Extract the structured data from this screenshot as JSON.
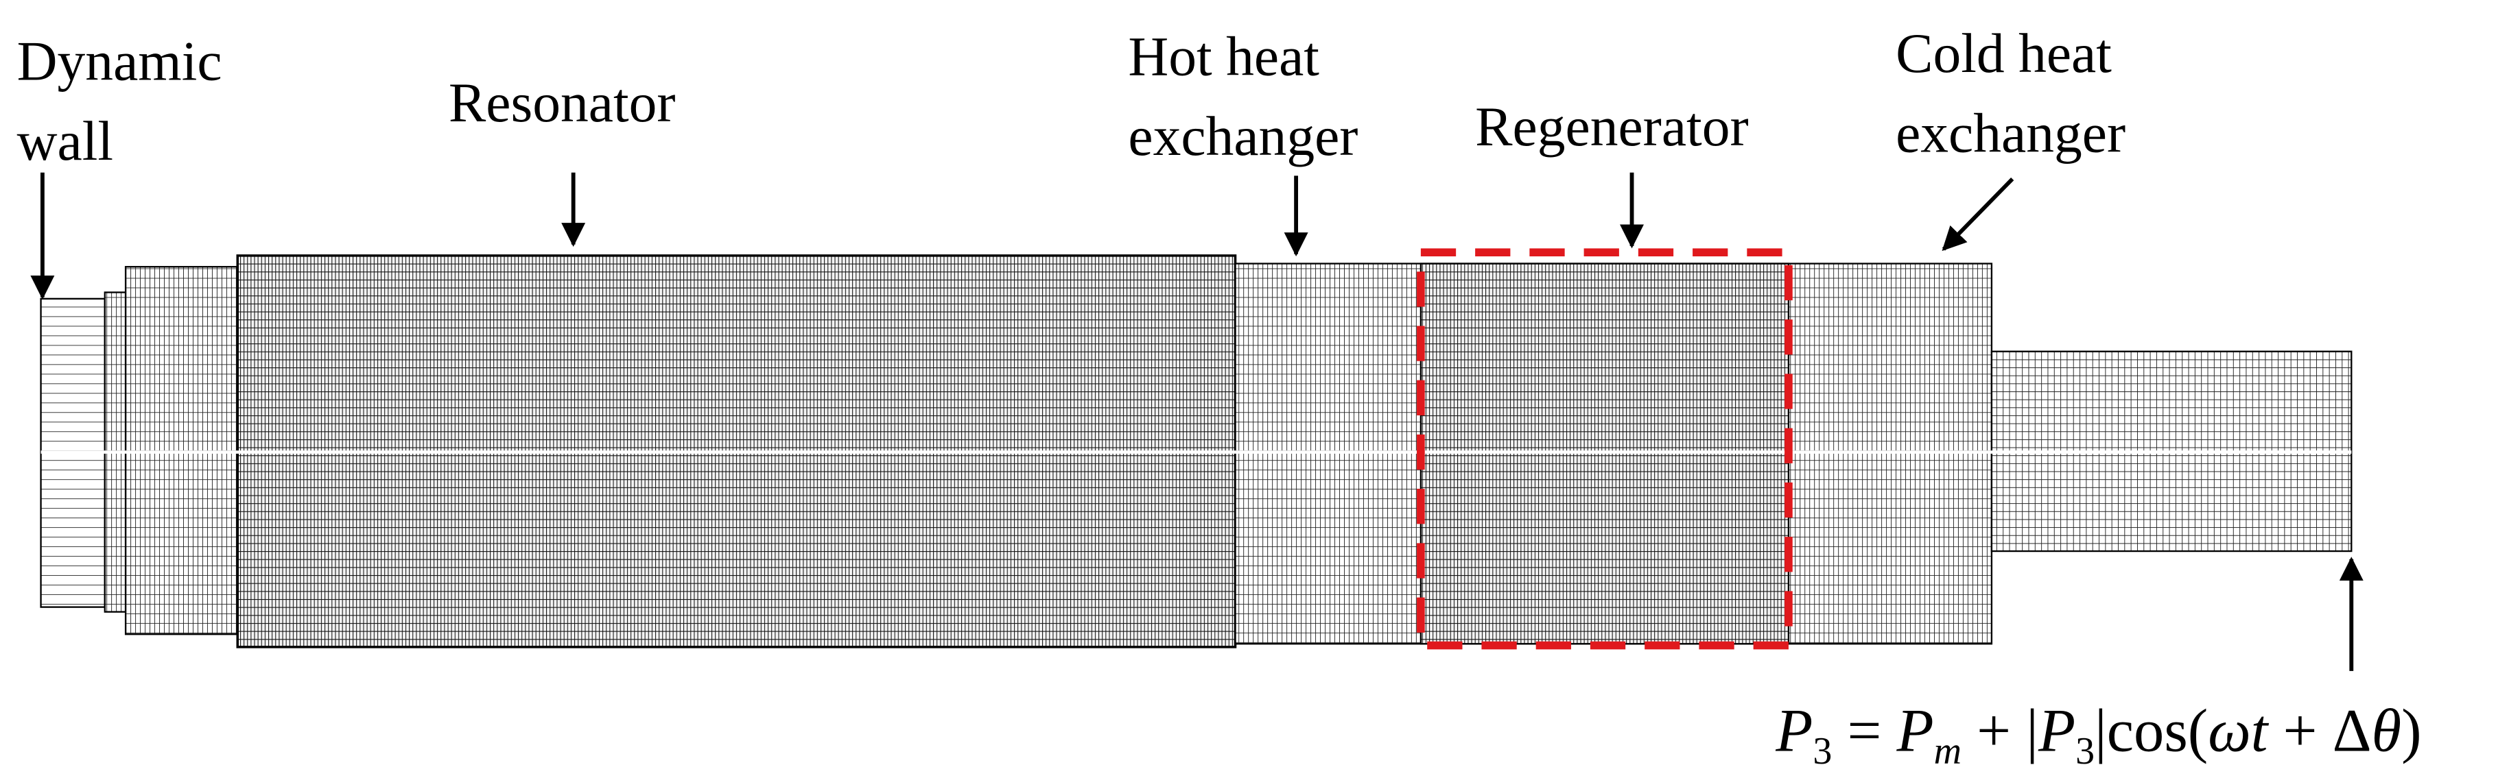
{
  "labels": {
    "dynamic_wall": [
      "Dynamic",
      "wall"
    ],
    "resonator": [
      "Resonator"
    ],
    "hot_heat_exchanger": [
      "Hot heat",
      "exchanger"
    ],
    "regenerator": [
      "Regenerator"
    ],
    "cold_heat_exchanger": [
      "Cold heat",
      "exchanger"
    ]
  },
  "equation": [
    "P",
    "3",
    " = ",
    "P",
    "m",
    " + |",
    "P",
    "3",
    "|cos(",
    "ωt",
    " + Δ",
    "θ",
    ")"
  ]
}
